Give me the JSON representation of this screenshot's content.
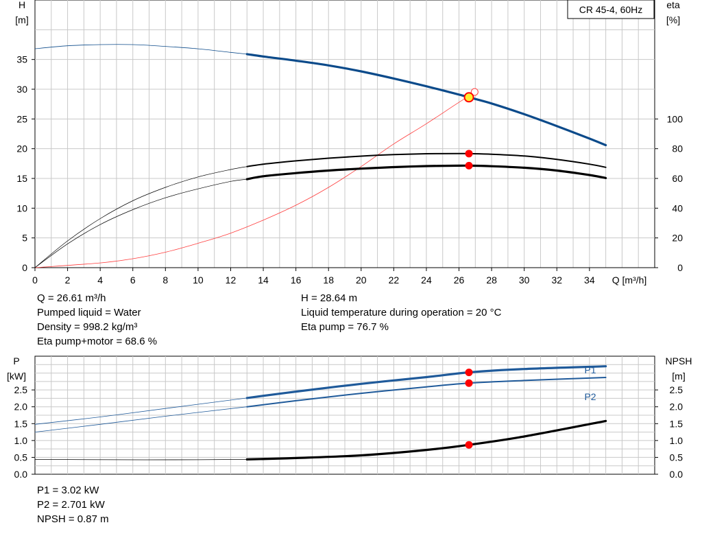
{
  "title": "CR 45-4, 60Hz",
  "top_chart": {
    "y_left_label_1": "H",
    "y_left_label_2": "[m]",
    "y_right_label_1": "eta",
    "y_right_label_2": "[%]",
    "x_label": "Q [m³/h]"
  },
  "bottom_chart": {
    "y_left_label_1": "P",
    "y_left_label_2": "[kW]",
    "y_right_label_1": "NPSH",
    "y_right_label_2": "[m]",
    "p1_label": "P1",
    "p2_label": "P2"
  },
  "info": {
    "q": "Q = 26.61 m³/h",
    "liquid": "Pumped liquid = Water",
    "density": "Density = 998.2 kg/m³",
    "eta_pump_motor": "Eta pump+motor = 68.6 %",
    "h": "H = 28.64 m",
    "temp": "Liquid temperature during operation = 20 °C",
    "eta_pump": "Eta pump = 76.7 %"
  },
  "info_bottom": {
    "p1": "P1 = 3.02 kW",
    "p2": "P2 = 2.701 kW",
    "npsh": "NPSH = 0.87 m"
  },
  "colors": {
    "head": "#0b4a8a",
    "power": "#1f5a9a",
    "eta": "#000000",
    "system": "#ff3b3b",
    "marker": "#ff0000",
    "op_point": "#ffee33",
    "grid": "#c8c8c8"
  },
  "chart_data": [
    {
      "type": "line",
      "name": "head-efficiency",
      "x_axis": {
        "label": "Q [m³/h]",
        "range": [
          0,
          38
        ],
        "ticks": [
          0,
          2,
          4,
          6,
          8,
          10,
          12,
          14,
          16,
          18,
          20,
          22,
          24,
          26,
          28,
          30,
          32,
          34
        ]
      },
      "y_left": {
        "label": "H [m]",
        "range": [
          0,
          45
        ],
        "ticks": [
          0,
          5,
          10,
          15,
          20,
          25,
          30,
          35
        ]
      },
      "y_right": {
        "label": "eta [%]",
        "range": [
          0,
          180
        ],
        "ticks": [
          0,
          20,
          40,
          60,
          80,
          100
        ]
      },
      "grid": true,
      "operating_point": {
        "q": 26.61,
        "h": 28.64,
        "eta_pump": 76.7,
        "eta_pump_motor": 68.6
      },
      "series": [
        {
          "key": "head",
          "axis": "left",
          "thin_until": 13,
          "x": [
            0,
            2,
            4,
            6,
            8,
            10,
            12,
            13,
            14,
            16,
            18,
            20,
            22,
            24,
            26,
            26.61,
            28,
            30,
            32,
            34,
            35
          ],
          "y": [
            36.8,
            37.3,
            37.5,
            37.5,
            37.2,
            36.8,
            36.2,
            35.9,
            35.5,
            34.8,
            34.0,
            33.0,
            31.8,
            30.5,
            29.1,
            28.64,
            27.6,
            25.8,
            23.8,
            21.7,
            20.6
          ]
        },
        {
          "key": "eta_pump",
          "axis": "right",
          "thin_until": 13,
          "x": [
            0,
            2,
            4,
            6,
            8,
            10,
            12,
            13,
            14,
            16,
            18,
            20,
            22,
            24,
            26,
            26.61,
            28,
            30,
            32,
            34,
            35
          ],
          "y": [
            0,
            18,
            33,
            45,
            54,
            61,
            66,
            68.0,
            69.6,
            71.8,
            73.6,
            75.0,
            76.0,
            76.6,
            76.7,
            76.7,
            76.3,
            75.1,
            72.8,
            69.6,
            67.5
          ]
        },
        {
          "key": "eta_pump_motor",
          "axis": "right",
          "thin_until": 13,
          "x": [
            0,
            2,
            4,
            6,
            8,
            10,
            12,
            13,
            14,
            16,
            18,
            20,
            22,
            24,
            26,
            26.61,
            28,
            30,
            32,
            34,
            35
          ],
          "y": [
            0,
            16,
            29,
            39,
            47,
            53,
            58,
            59.5,
            61.5,
            63.6,
            65.3,
            66.6,
            67.6,
            68.3,
            68.6,
            68.6,
            68.2,
            67.2,
            65.3,
            62.3,
            60.3
          ]
        },
        {
          "key": "system",
          "axis": "left",
          "thin_until": 0,
          "x": [
            0,
            4,
            6,
            8,
            10,
            12,
            14,
            16,
            18,
            20,
            22,
            24,
            26,
            27
          ],
          "y": [
            0,
            0.8,
            1.5,
            2.6,
            4.1,
            5.8,
            8.0,
            10.5,
            13.5,
            17.0,
            20.8,
            24.2,
            27.8,
            29.5
          ]
        }
      ]
    },
    {
      "type": "line",
      "name": "power-npsh",
      "x_axis": {
        "range": [
          0,
          38
        ]
      },
      "y_left": {
        "label": "P [kW]",
        "range": [
          0,
          3.5
        ],
        "ticks": [
          0.0,
          0.5,
          1.0,
          1.5,
          2.0,
          2.5
        ]
      },
      "y_right": {
        "label": "NPSH [m]",
        "range": [
          0,
          3.5
        ],
        "ticks": [
          0.0,
          0.5,
          1.0,
          1.5,
          2.0,
          2.5
        ]
      },
      "grid": true,
      "operating_point": {
        "q": 26.61,
        "p1": 3.02,
        "p2": 2.701,
        "npsh": 0.87
      },
      "series": [
        {
          "key": "p1",
          "name": "P1",
          "axis": "left",
          "thin_until": 13,
          "x": [
            0,
            4,
            8,
            13,
            16,
            20,
            24,
            26.61,
            30,
            35
          ],
          "y": [
            1.48,
            1.7,
            1.95,
            2.26,
            2.45,
            2.68,
            2.88,
            3.02,
            3.12,
            3.2
          ]
        },
        {
          "key": "p2",
          "name": "P2",
          "axis": "left",
          "thin_until": 13,
          "x": [
            0,
            4,
            8,
            13,
            16,
            20,
            24,
            26.61,
            30,
            35
          ],
          "y": [
            1.25,
            1.48,
            1.72,
            2.0,
            2.18,
            2.4,
            2.59,
            2.701,
            2.78,
            2.87
          ]
        },
        {
          "key": "npsh",
          "axis": "right",
          "thin_until": 13,
          "x": [
            0,
            5,
            10,
            13,
            16,
            20,
            24,
            26.61,
            30,
            35
          ],
          "y": [
            0.44,
            0.43,
            0.43,
            0.44,
            0.48,
            0.56,
            0.72,
            0.87,
            1.12,
            1.58
          ]
        }
      ]
    }
  ]
}
